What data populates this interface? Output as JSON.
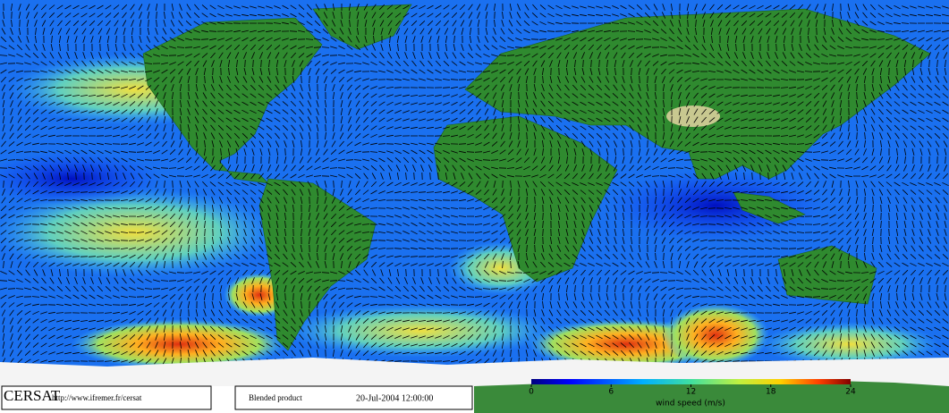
{
  "footer": {
    "logo": "CERSAT",
    "url": "http://www.ifremer.fr/cersat",
    "product": "Blended product",
    "datetime": "20-Jul-2004 12:00:00"
  },
  "colorbar": {
    "label": "wind speed (m/s)",
    "lim": [
      0,
      24
    ],
    "ticks": [
      0,
      6,
      12,
      18,
      24
    ]
  }
}
